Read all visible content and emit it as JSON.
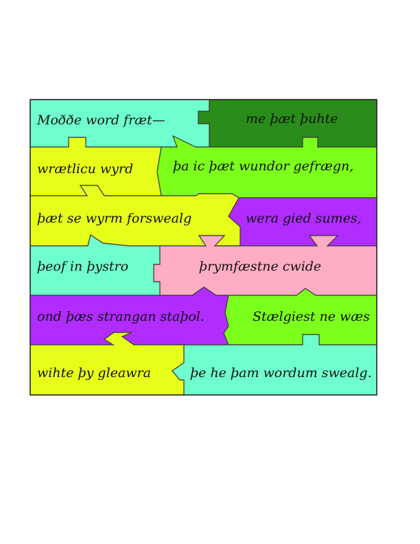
{
  "colors": {
    "mint": "#6fffcc",
    "forest": "#2a8c1a",
    "lime": "#7cff1a",
    "yellow": "#e6ff1a",
    "violet": "#b02cff",
    "pink": "#ffadc4"
  },
  "poem": {
    "lines": [
      "Moððe word fræt—",
      "me þæt þuhte",
      "wrætlicu wyrd",
      "þa ic þæt wundor gefrægn,",
      "þæt se wyrm forswealg",
      "wera gied sumes,",
      "þeof in þystro",
      "þrymfæstne cwide",
      "ond þæs strangan staþol.",
      "Stælgiest ne wæs",
      "wihte þy gleawra",
      "þe he þam wordum swealg."
    ]
  }
}
